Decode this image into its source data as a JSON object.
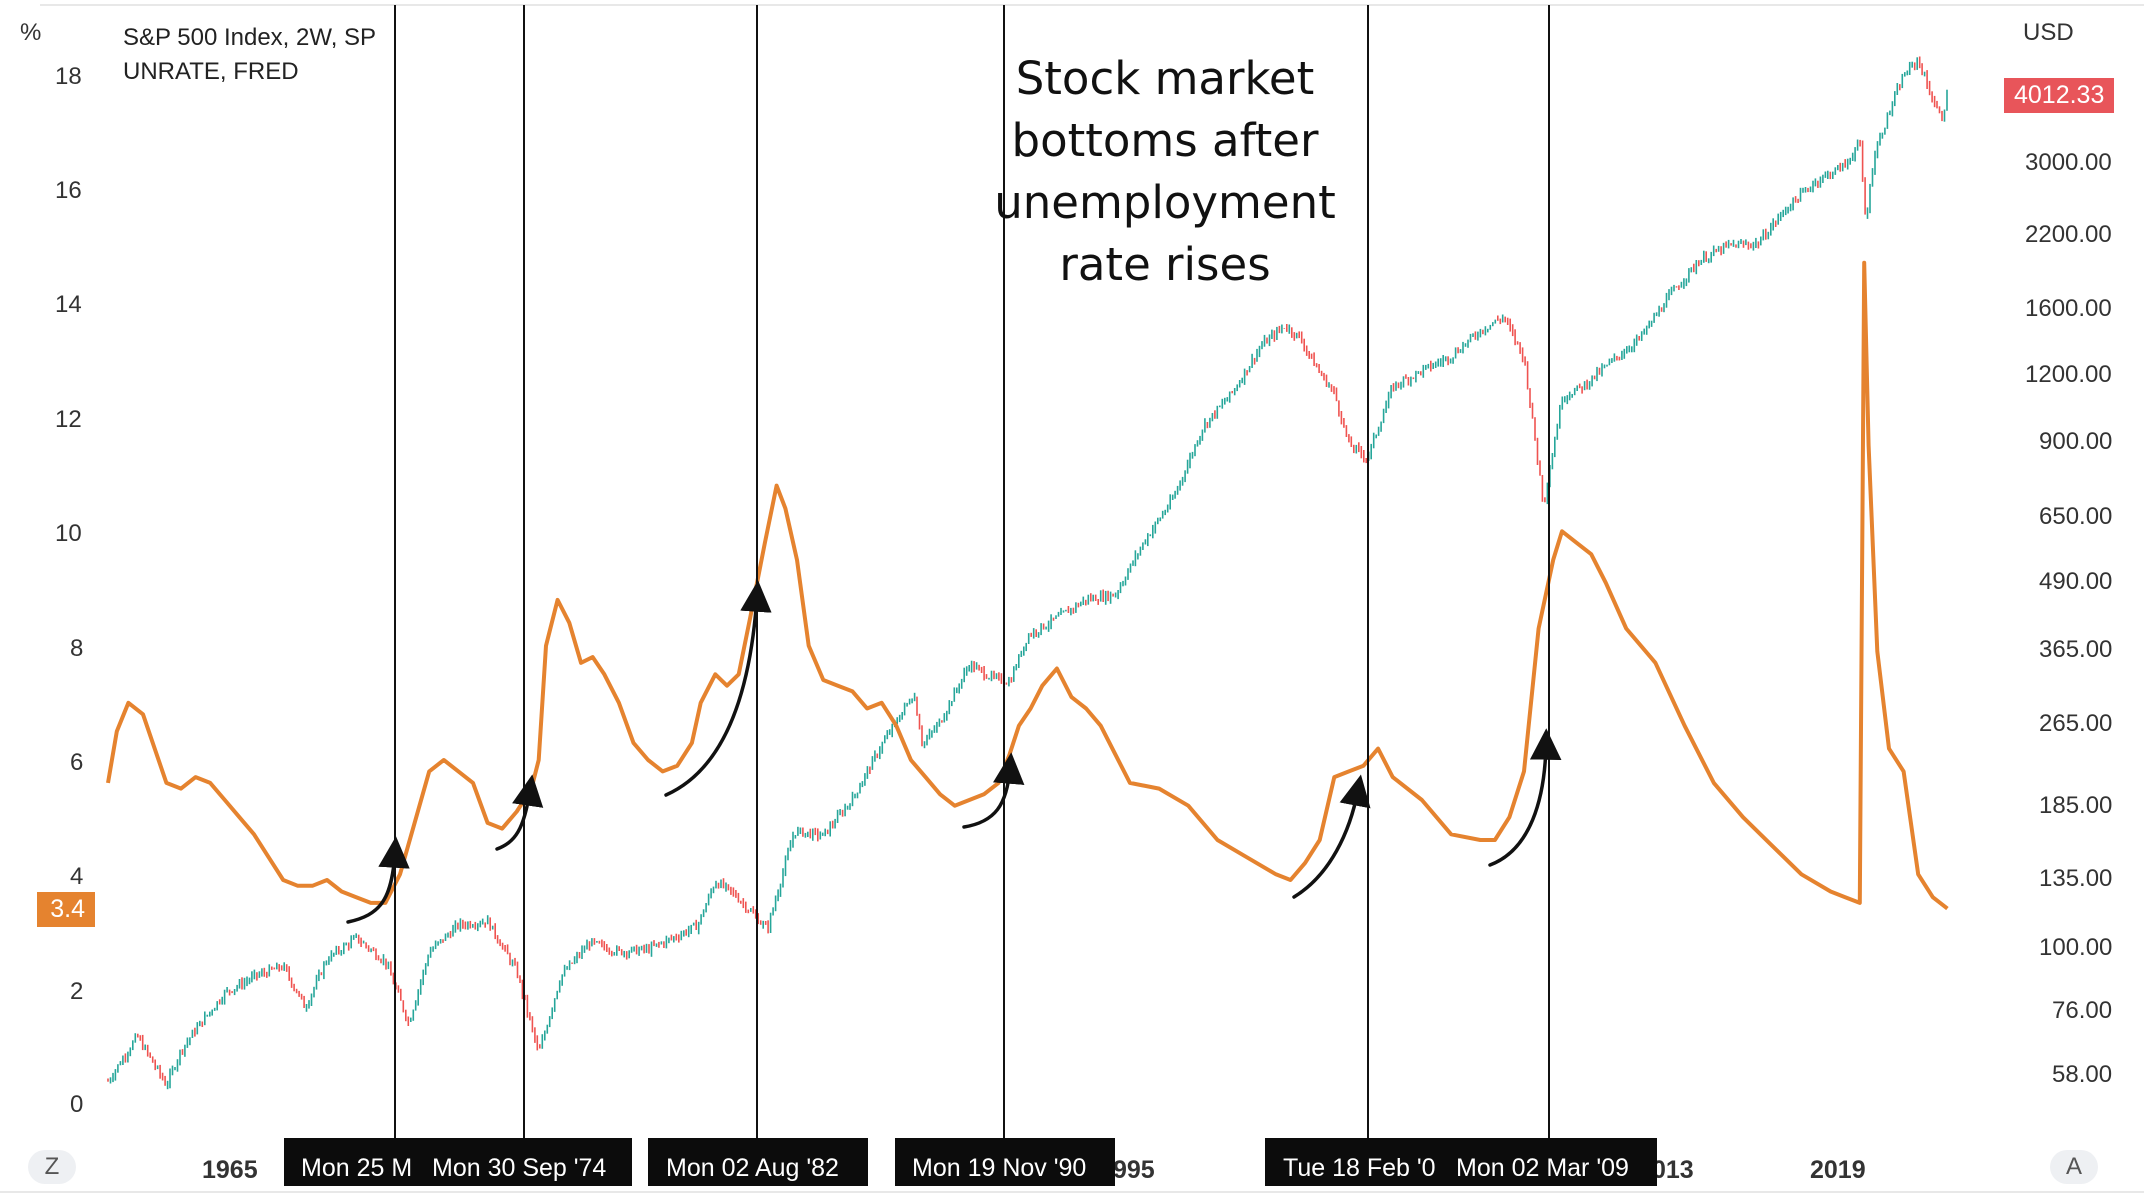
{
  "legend": [
    "S&P 500 Index, 2W, SP",
    "UNRATE, FRED"
  ],
  "left_axis": {
    "unit": "%",
    "ticks": [
      "18",
      "16",
      "14",
      "12",
      "10",
      "8",
      "6",
      "4",
      "2",
      "0"
    ]
  },
  "right_axis": {
    "unit": "USD",
    "ticks": [
      "3000.00",
      "2200.00",
      "1600.00",
      "1200.00",
      "900.00",
      "650.00",
      "490.00",
      "365.00",
      "265.00",
      "185.00",
      "135.00",
      "100.00",
      "76.00",
      "58.00"
    ]
  },
  "x_axis": {
    "ticks": [
      "1965",
      "995",
      "013",
      "2019"
    ]
  },
  "annotation": "Stock market bottoms after unemployment rate rises",
  "badges": {
    "unrate_last": "3.4",
    "spx_last": "4012.33"
  },
  "buttons": {
    "left": "Z",
    "right": "A"
  },
  "date_markers": [
    "Mon 25 M",
    "Mon 30 Sep '74",
    "Mon 02 Aug '82",
    "Mon 19 Nov '90",
    "Tue 18 Feb '0",
    "Mon 02 Mar '09"
  ],
  "colors": {
    "unrate": "#e5832f",
    "spx_up": "#26a69a",
    "spx_down": "#ef5350",
    "badge_spx": "#e8555a",
    "badge_unrate": "#e5832f"
  },
  "chart_data": {
    "type": "line",
    "title": "Stock market bottoms after unemployment rate rises",
    "x_range": [
      1960.0,
      2023.5
    ],
    "marker_dates": [
      1966.75,
      1974.75,
      1982.58,
      1990.88,
      2003.13,
      2009.17
    ],
    "series": [
      {
        "name": "UNRATE, FRED",
        "axis": "left",
        "unit": "%",
        "ylim": [
          0,
          19
        ],
        "x": [
          1960.0,
          1960.3,
          1960.7,
          1961.2,
          1961.6,
          1962.0,
          1962.5,
          1963.0,
          1963.5,
          1964.0,
          1964.5,
          1965.0,
          1965.5,
          1966.0,
          1966.5,
          1967.0,
          1967.5,
          1968.0,
          1968.5,
          1969.0,
          1969.5,
          1970.0,
          1970.5,
          1971.0,
          1971.5,
          1972.0,
          1972.5,
          1973.0,
          1973.5,
          1974.0,
          1974.5,
          1974.75,
          1975.0,
          1975.4,
          1975.8,
          1976.2,
          1976.6,
          1977.0,
          1977.5,
          1978.0,
          1978.5,
          1979.0,
          1979.5,
          1980.0,
          1980.3,
          1980.8,
          1981.2,
          1981.6,
          1982.0,
          1982.5,
          1982.9,
          1983.2,
          1983.6,
          1984.0,
          1984.5,
          1985.0,
          1985.5,
          1986.0,
          1986.5,
          1987.0,
          1987.5,
          1988.0,
          1988.5,
          1989.0,
          1989.5,
          1990.0,
          1990.5,
          1990.88,
          1991.2,
          1991.6,
          1992.0,
          1992.5,
          1993.0,
          1993.5,
          1994.0,
          1994.5,
          1995.0,
          1996.0,
          1997.0,
          1998.0,
          1999.0,
          2000.0,
          2000.5,
          2001.0,
          2001.5,
          2002.0,
          2002.5,
          2003.0,
          2003.5,
          2004.0,
          2005.0,
          2006.0,
          2007.0,
          2007.5,
          2008.0,
          2008.5,
          2009.0,
          2009.5,
          2009.8,
          2010.3,
          2010.8,
          2011.3,
          2012.0,
          2013.0,
          2014.0,
          2015.0,
          2016.0,
          2017.0,
          2018.0,
          2019.0,
          2019.5,
          2020.0,
          2020.15,
          2020.3,
          2020.6,
          2021.0,
          2021.5,
          2022.0,
          2022.5,
          2023.0
        ],
        "y": [
          5.6,
          6.5,
          7.0,
          6.8,
          6.2,
          5.6,
          5.5,
          5.7,
          5.6,
          5.3,
          5.0,
          4.7,
          4.3,
          3.9,
          3.8,
          3.8,
          3.9,
          3.7,
          3.6,
          3.5,
          3.5,
          4.0,
          4.9,
          5.8,
          6.0,
          5.8,
          5.6,
          4.9,
          4.8,
          5.1,
          5.5,
          6.0,
          8.0,
          8.8,
          8.4,
          7.7,
          7.8,
          7.5,
          7.0,
          6.3,
          6.0,
          5.8,
          5.9,
          6.3,
          7.0,
          7.5,
          7.3,
          7.5,
          8.5,
          9.8,
          10.8,
          10.4,
          9.5,
          8.0,
          7.4,
          7.3,
          7.2,
          6.9,
          7.0,
          6.6,
          6.0,
          5.7,
          5.4,
          5.2,
          5.3,
          5.4,
          5.6,
          6.1,
          6.6,
          6.9,
          7.3,
          7.6,
          7.1,
          6.9,
          6.6,
          6.1,
          5.6,
          5.5,
          5.2,
          4.6,
          4.3,
          4.0,
          3.9,
          4.2,
          4.6,
          5.7,
          5.8,
          5.9,
          6.2,
          5.7,
          5.3,
          4.7,
          4.6,
          4.6,
          5.0,
          5.8,
          8.3,
          9.5,
          10.0,
          9.8,
          9.6,
          9.1,
          8.3,
          7.7,
          6.6,
          5.6,
          5.0,
          4.5,
          4.0,
          3.7,
          3.6,
          3.5,
          14.7,
          11.5,
          7.9,
          6.2,
          5.8,
          4.0,
          3.6,
          3.4
        ]
      },
      {
        "name": "S&P 500 Index, 2W, SP",
        "axis": "right",
        "unit": "USD",
        "log_scale": true,
        "ylim": [
          45,
          5500
        ],
        "x": [
          1960.0,
          1961.0,
          1962.0,
          1962.5,
          1963.0,
          1964.0,
          1965.0,
          1966.0,
          1966.75,
          1967.5,
          1968.5,
          1969.5,
          1970.3,
          1971.0,
          1972.0,
          1973.0,
          1974.0,
          1974.75,
          1975.5,
          1976.5,
          1977.5,
          1978.5,
          1979.5,
          1980.2,
          1980.8,
          1981.5,
          1982.58,
          1983.5,
          1984.5,
          1985.5,
          1986.5,
          1987.6,
          1987.9,
          1988.5,
          1989.5,
          1990.3,
          1990.88,
          1991.5,
          1992.5,
          1993.5,
          1994.5,
          1995.5,
          1996.5,
          1997.5,
          1998.5,
          1999.5,
          2000.3,
          2000.8,
          2001.5,
          2002.0,
          2002.5,
          2003.13,
          2004.0,
          2005.0,
          2006.0,
          2007.0,
          2007.8,
          2008.5,
          2009.17,
          2009.8,
          2010.5,
          2011.5,
          2012.5,
          2013.5,
          2014.5,
          2015.5,
          2016.5,
          2017.5,
          2018.5,
          2019.5,
          2020.0,
          2020.2,
          2020.5,
          2021.0,
          2021.5,
          2022.0,
          2022.5,
          2022.8,
          2023.0
        ],
        "y": [
          56,
          68,
          55,
          64,
          70,
          82,
          88,
          92,
          77,
          95,
          104,
          94,
          72,
          98,
          110,
          112,
          90,
          63,
          88,
          102,
          98,
          99,
          105,
          110,
          133,
          125,
          108,
          165,
          162,
          190,
          240,
          300,
          240,
          265,
          340,
          320,
          315,
          385,
          415,
          450,
          460,
          580,
          700,
          950,
          1100,
          1350,
          1470,
          1400,
          1200,
          1100,
          880,
          830,
          1130,
          1210,
          1290,
          1440,
          1530,
          1280,
          680,
          1080,
          1130,
          1260,
          1400,
          1680,
          1950,
          2080,
          2100,
          2450,
          2750,
          2950,
          3250,
          2300,
          3100,
          3700,
          4350,
          4650,
          3900,
          3600,
          4012
        ]
      }
    ]
  }
}
